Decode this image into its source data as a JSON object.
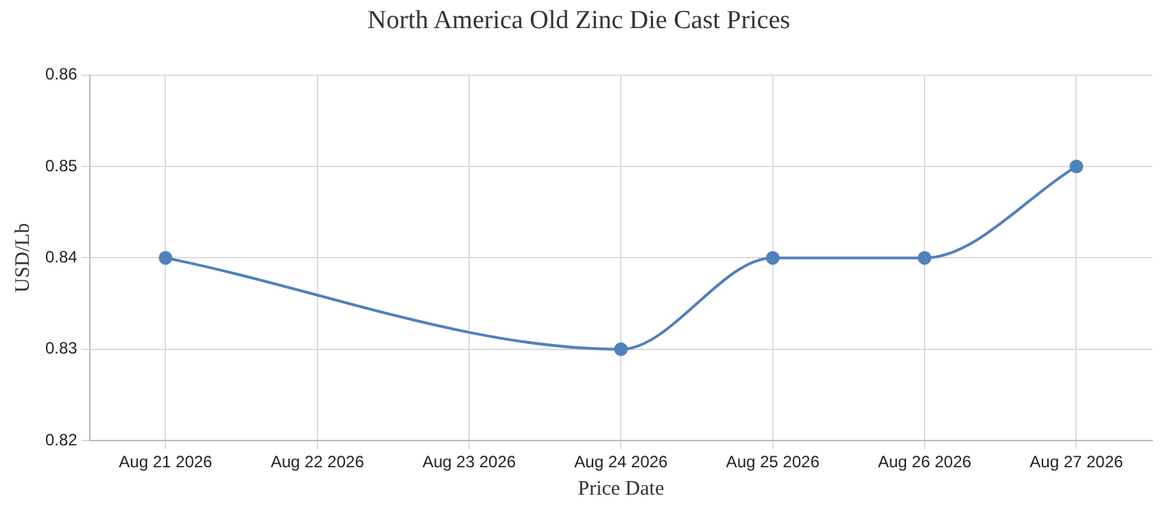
{
  "chart_data": {
    "type": "line",
    "title": "North America Old Zinc Die Cast Prices",
    "xlabel": "Price Date",
    "ylabel": "USD/Lb",
    "x": [
      "2026-08-21",
      "2026-08-24",
      "2026-08-25",
      "2026-08-26",
      "2026-08-27"
    ],
    "series": [
      {
        "color": "#4f81bc",
        "values": [
          0.84,
          0.83,
          0.84,
          0.84,
          0.85
        ]
      }
    ],
    "xlim": [
      "2026-08-20T12:00",
      "2026-08-27T12:00"
    ],
    "xticks": [
      {
        "value": "2026-08-21",
        "label": "Aug 21 2026"
      },
      {
        "value": "2026-08-22",
        "label": "Aug 22 2026"
      },
      {
        "value": "2026-08-23",
        "label": "Aug 23 2026"
      },
      {
        "value": "2026-08-24",
        "label": "Aug 24 2026"
      },
      {
        "value": "2026-08-25",
        "label": "Aug 25 2026"
      },
      {
        "value": "2026-08-26",
        "label": "Aug 26 2026"
      },
      {
        "value": "2026-08-27",
        "label": "Aug 27 2026"
      }
    ],
    "ylim": [
      0.82,
      0.86
    ],
    "yticks": [
      0.82,
      0.83,
      0.84,
      0.85,
      0.86
    ],
    "grid": true,
    "legend": false,
    "marker": "circle",
    "line_style": "solid"
  }
}
